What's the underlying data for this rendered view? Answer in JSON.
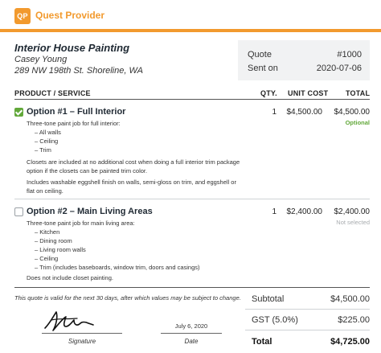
{
  "brand": {
    "logo_text": "QP",
    "name": "Quest Provider",
    "accent": "#f29a2e"
  },
  "job": {
    "title": "Interior House Painting",
    "client": "Casey Young",
    "address": "289 NW 198th St. Shoreline, WA"
  },
  "quote": {
    "label": "Quote",
    "number": "#1000",
    "sent_label": "Sent on",
    "sent_date": "2020-07-06"
  },
  "table": {
    "col_product": "PRODUCT / SERVICE",
    "col_qty": "QTY.",
    "col_unit": "UNIT COST",
    "col_total": "TOTAL"
  },
  "items": [
    {
      "title": "Option #1 – Full Interior",
      "selected": true,
      "qty": "1",
      "unit": "$4,500.00",
      "total": "$4,500.00",
      "badge": "Optional",
      "intro": "Three-tone paint job for full interior:",
      "bullets": [
        "– All walls",
        "– Ceiling",
        "– Trim"
      ],
      "para1a": "Closets are included at no additional cost when doing a full interior trim package",
      "para1b": "option if the closets can be painted trim color.",
      "para2a": "Includes washable eggshell finish on walls, semi-gloss on trim, and eggshell or",
      "para2b": "flat on ceiling."
    },
    {
      "title": "Option #2 – Main Living Areas",
      "selected": false,
      "qty": "1",
      "unit": "$2,400.00",
      "total": "$2,400.00",
      "badge": "Not selected",
      "intro": "Three-tone paint job for main living area:",
      "bullets": [
        "– Kitchen",
        "– Dining room",
        "– Living room walls",
        "– Ceiling",
        "– Trim (includes baseboards, window trim, doors and casings)"
      ],
      "para1a": "Does not include closet painting."
    }
  ],
  "footer": {
    "validity_note": "This quote is valid for the next 30 days, after which values may be subject to change.",
    "signature_label": "Signature",
    "date_label": "Date",
    "signed_date": "July 6, 2020"
  },
  "totals": {
    "subtotal_label": "Subtotal",
    "subtotal": "$4,500.00",
    "gst_label": "GST (5.0%)",
    "gst": "$225.00",
    "total_label": "Total",
    "total": "$4,725.00"
  }
}
